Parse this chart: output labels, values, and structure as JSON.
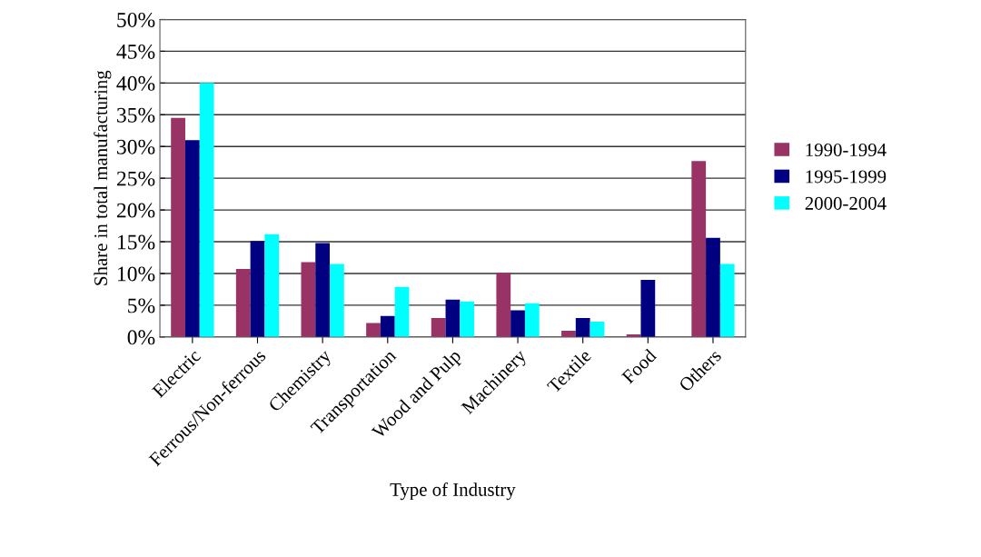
{
  "chart_data": {
    "type": "bar",
    "xlabel": "Type of Industry",
    "ylabel": "Share in total manufacturing",
    "categories": [
      "Electric",
      "Ferrous/Non-ferrous",
      "Chemistry",
      "Transportation",
      "Wood and Pulp",
      "Machinery",
      "Textile",
      "Food",
      "Others"
    ],
    "series": [
      {
        "name": "1990-1994",
        "color": "#993366",
        "values": [
          34.5,
          10.7,
          11.8,
          2.2,
          3.0,
          10.1,
          1.0,
          0.4,
          27.7
        ]
      },
      {
        "name": "1995-1999",
        "color": "#000080",
        "values": [
          31.0,
          15.1,
          14.8,
          3.3,
          5.9,
          4.2,
          3.0,
          9.0,
          15.6
        ]
      },
      {
        "name": "2000-2004",
        "color": "#00ffff",
        "values": [
          40.0,
          16.2,
          11.5,
          7.9,
          5.6,
          5.3,
          2.4,
          null,
          11.5
        ]
      }
    ],
    "ylim": [
      0,
      50
    ],
    "yticks": [
      {
        "value": 0,
        "label": "0%"
      },
      {
        "value": 5,
        "label": "5%"
      },
      {
        "value": 10,
        "label": "10%"
      },
      {
        "value": 15,
        "label": "15%"
      },
      {
        "value": 20,
        "label": "20%"
      },
      {
        "value": 25,
        "label": "25%"
      },
      {
        "value": 30,
        "label": "30%"
      },
      {
        "value": 35,
        "label": "35%"
      },
      {
        "value": 40,
        "label": "40%"
      },
      {
        "value": 45,
        "label": "45%"
      },
      {
        "value": 50,
        "label": "50%"
      }
    ],
    "grid": "y",
    "legend": "right"
  }
}
